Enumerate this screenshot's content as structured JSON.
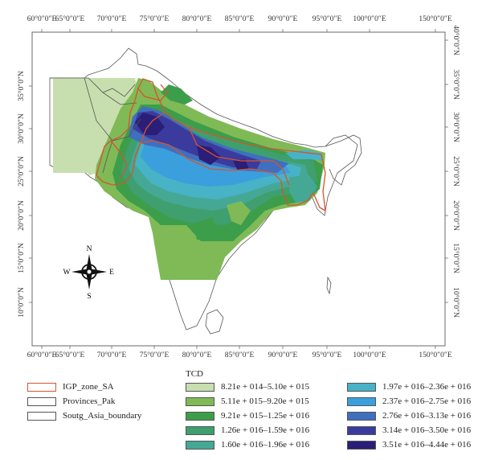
{
  "map": {
    "lon_labels": [
      "60°0″0″E",
      "65°0″0″E",
      "70°0″0″E",
      "75°0″0″E",
      "80°0″0″E",
      "85°0″0″E",
      "90°0″0″E",
      "95°0″0″E",
      "100°0″0″E",
      "150°0″0″E"
    ],
    "lat_labels_left": [
      "35°0″0″N",
      "30°0″0″N",
      "25°0″0″N",
      "20°0″0″N",
      "15°0″0″N",
      "10°0″0″N"
    ],
    "lat_labels_right": [
      "40°0″0″N",
      "35°0″0″N",
      "30°0″0″N",
      "25°0″0″N",
      "20°0″0″N",
      "15°0″0″N",
      "10°0″0″N"
    ],
    "compass": {
      "n": "N",
      "s": "S",
      "e": "E",
      "w": "W"
    }
  },
  "legend": {
    "layers": [
      {
        "label": "IGP_zone_SA",
        "stroke": "#d9532b"
      },
      {
        "label": "Provinces_Pak",
        "stroke": "#555555"
      },
      {
        "label": "Soutg_Asia_boundary",
        "stroke": "#555555"
      }
    ],
    "tcd_title": "TCD",
    "classes": [
      {
        "label": "8.21e + 014–5.10e + 015",
        "color": "#c7dfae"
      },
      {
        "label": "5.11e + 015–9.20e + 015",
        "color": "#7fba56"
      },
      {
        "label": "9.21e + 015–1.25e + 016",
        "color": "#3c9e4a"
      },
      {
        "label": "1.26e + 016–1.59e + 016",
        "color": "#3f9f6e"
      },
      {
        "label": "1.60e + 016–1.96e + 016",
        "color": "#45a895"
      },
      {
        "label": "1.97e + 016–2.36e + 016",
        "color": "#48b3c6"
      },
      {
        "label": "2.37e + 016–2.75e + 016",
        "color": "#3a9fdc"
      },
      {
        "label": "2.76e + 016–3.13e + 016",
        "color": "#3f6fbe"
      },
      {
        "label": "3.14e + 016–3.50e + 016",
        "color": "#3b3b9e"
      },
      {
        "label": "3.51e + 016–4.44e + 016",
        "color": "#2a1e78"
      }
    ]
  }
}
